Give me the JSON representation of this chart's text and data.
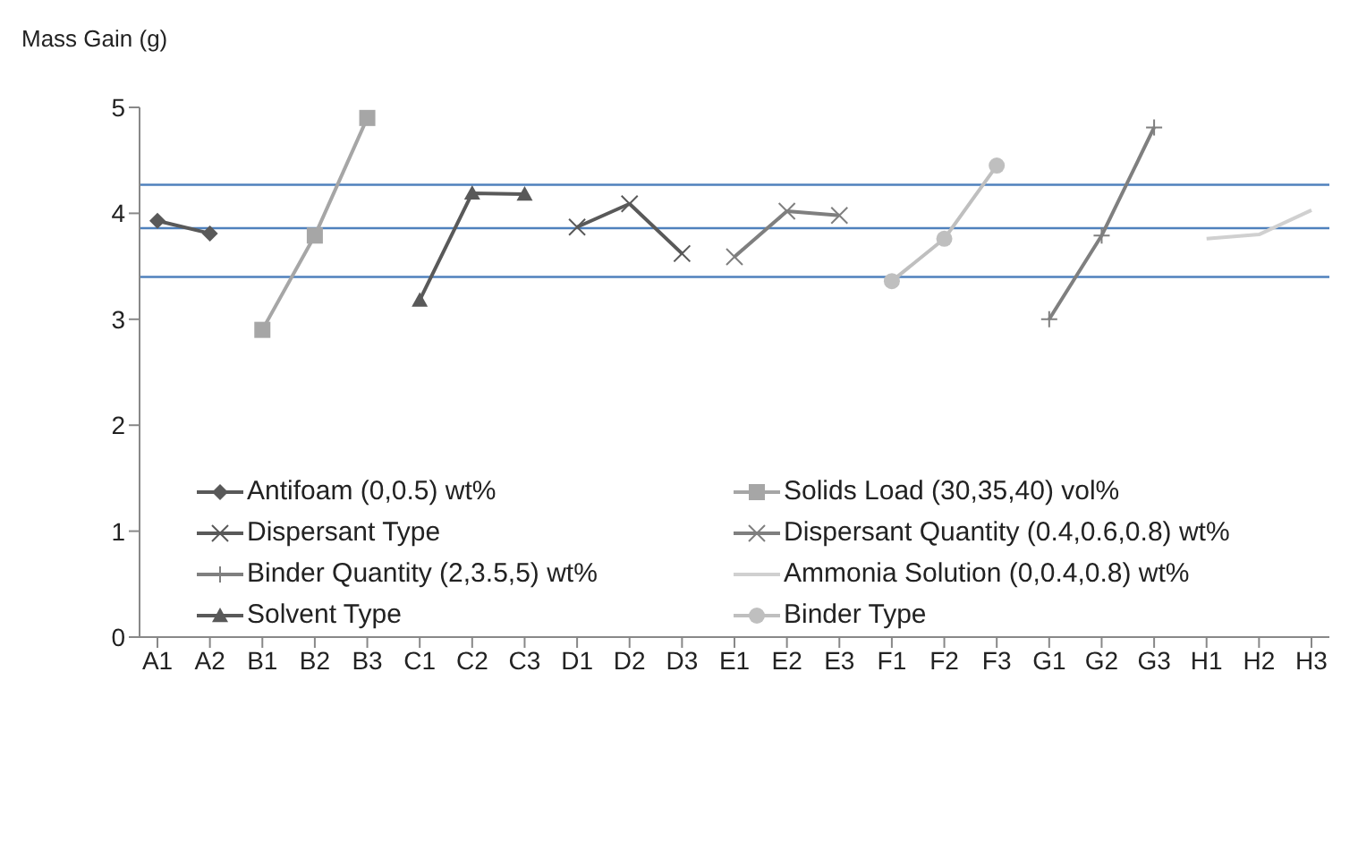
{
  "chart_data": {
    "type": "line",
    "ylabel": "Mass Gain (g)",
    "categories": [
      "A1",
      "A2",
      "B1",
      "B2",
      "B3",
      "C1",
      "C2",
      "C3",
      "D1",
      "D2",
      "D3",
      "E1",
      "E2",
      "E3",
      "F1",
      "F2",
      "F3",
      "G1",
      "G2",
      "G3",
      "H1",
      "H2",
      "H3"
    ],
    "ylim": [
      0,
      5
    ],
    "yticks": [
      0,
      1,
      2,
      3,
      4,
      5
    ],
    "grid": false,
    "legend": "left",
    "series": [
      {
        "name": "Antifoam (0,0.5)  wt%",
        "color": "#595959",
        "marker": "diamond",
        "values": [
          3.93,
          3.81,
          null,
          null,
          null,
          null,
          null,
          null,
          null,
          null,
          null,
          null,
          null,
          null,
          null,
          null,
          null,
          null,
          null,
          null,
          null,
          null,
          null
        ]
      },
      {
        "name": "Solids Load (30,35,40)  vol%",
        "color": "#a6a6a6",
        "marker": "square",
        "values": [
          null,
          null,
          2.9,
          3.79,
          4.9,
          null,
          null,
          null,
          null,
          null,
          null,
          null,
          null,
          null,
          null,
          null,
          null,
          null,
          null,
          null,
          null,
          null,
          null
        ]
      },
      {
        "name": "Dispersant Type",
        "color": "#595959",
        "marker": "cross",
        "values": [
          null,
          null,
          null,
          null,
          null,
          null,
          null,
          null,
          3.87,
          4.09,
          3.62,
          null,
          null,
          null,
          null,
          null,
          null,
          null,
          null,
          null,
          null,
          null,
          null
        ]
      },
      {
        "name": "Dispersant Quantity (0.4,0.6,0.8)  wt%",
        "color": "#7f7f7f",
        "marker": "cross",
        "values": [
          null,
          null,
          null,
          null,
          null,
          null,
          null,
          null,
          null,
          null,
          null,
          3.59,
          4.02,
          3.98,
          null,
          null,
          null,
          null,
          null,
          null,
          null,
          null,
          null
        ]
      },
      {
        "name": "Binder Quantity (2,3.5,5)  wt%",
        "color": "#7f7f7f",
        "marker": "plus",
        "values": [
          null,
          null,
          null,
          null,
          null,
          null,
          null,
          null,
          null,
          null,
          null,
          null,
          null,
          null,
          null,
          null,
          null,
          3.0,
          3.79,
          4.81,
          null,
          null,
          null
        ]
      },
      {
        "name": "Ammonia Solution  (0,0.4,0.8)  wt%",
        "color": "#d0d0d0",
        "marker": "none",
        "values": [
          null,
          null,
          null,
          null,
          null,
          null,
          null,
          null,
          null,
          null,
          null,
          null,
          null,
          null,
          null,
          null,
          null,
          null,
          null,
          null,
          3.76,
          3.8,
          4.03
        ]
      },
      {
        "name": "Solvent Type",
        "color": "#595959",
        "marker": "triangle",
        "values": [
          null,
          null,
          null,
          null,
          null,
          3.18,
          4.19,
          4.18,
          null,
          null,
          null,
          null,
          null,
          null,
          null,
          null,
          null,
          null,
          null,
          null,
          null,
          null,
          null
        ]
      },
      {
        "name": "Binder Type",
        "color": "#bfbfbf",
        "marker": "circle",
        "values": [
          null,
          null,
          null,
          null,
          null,
          null,
          null,
          null,
          null,
          null,
          null,
          null,
          null,
          null,
          3.36,
          3.76,
          4.45,
          null,
          null,
          null,
          null,
          null,
          null
        ]
      }
    ],
    "ref_lines": [
      {
        "axis": "y",
        "value": 4.27,
        "color": "#4f81bd"
      },
      {
        "axis": "y",
        "value": 3.86,
        "color": "#4f81bd"
      },
      {
        "axis": "y",
        "value": 3.4,
        "color": "#4f81bd"
      }
    ]
  }
}
